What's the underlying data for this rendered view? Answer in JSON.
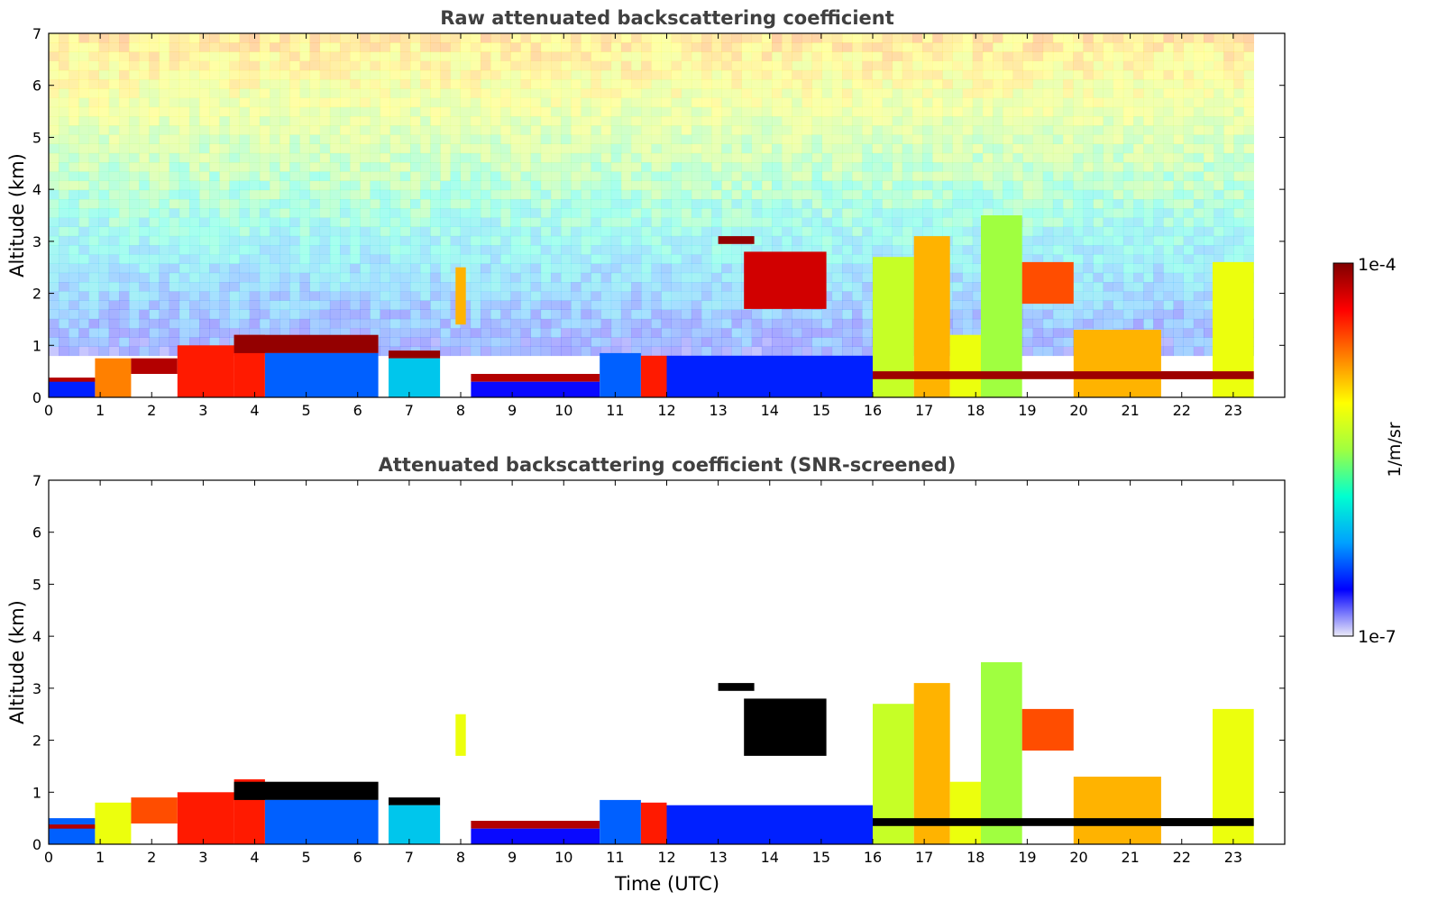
{
  "chart_data": [
    {
      "type": "heatmap",
      "title": "Raw attenuated backscattering coefficient",
      "xlabel": "",
      "ylabel": "Altitude (km)",
      "xlim": [
        0,
        24
      ],
      "ylim": [
        0,
        7
      ],
      "xticks": [
        "0",
        "1",
        "2",
        "3",
        "4",
        "5",
        "6",
        "7",
        "8",
        "9",
        "10",
        "11",
        "12",
        "13",
        "14",
        "15",
        "16",
        "17",
        "18",
        "19",
        "20",
        "21",
        "22",
        "23"
      ],
      "yticks": [
        "0",
        "1",
        "2",
        "3",
        "4",
        "5",
        "6",
        "7"
      ],
      "data_end_hour": 23.4,
      "grid": false,
      "layers": [
        {
          "t0": 0.0,
          "t1": 0.9,
          "base": 0.0,
          "top": 0.35,
          "level": 0.15
        },
        {
          "t0": 0.0,
          "t1": 0.9,
          "base": 0.3,
          "top": 0.38,
          "level": 0.95
        },
        {
          "t0": 0.9,
          "t1": 1.6,
          "base": 0.0,
          "top": 0.75,
          "level": 0.75
        },
        {
          "t0": 1.6,
          "t1": 2.5,
          "base": 0.45,
          "top": 0.75,
          "level": 0.95
        },
        {
          "t0": 2.5,
          "t1": 3.6,
          "base": 0.0,
          "top": 1.0,
          "level": 0.85
        },
        {
          "t0": 3.6,
          "t1": 4.2,
          "base": 0.0,
          "top": 1.2,
          "level": 0.85
        },
        {
          "t0": 3.6,
          "t1": 6.4,
          "base": 0.85,
          "top": 1.2,
          "level": 0.98
        },
        {
          "t0": 4.2,
          "t1": 6.4,
          "base": 0.0,
          "top": 0.85,
          "level": 0.2
        },
        {
          "t0": 6.6,
          "t1": 7.6,
          "base": 0.75,
          "top": 0.9,
          "level": 0.98
        },
        {
          "t0": 6.6,
          "t1": 7.6,
          "base": 0.0,
          "top": 0.75,
          "level": 0.3
        },
        {
          "t0": 7.9,
          "t1": 8.1,
          "base": 1.4,
          "top": 2.5,
          "level": 0.7
        },
        {
          "t0": 8.2,
          "t1": 10.7,
          "base": 0.3,
          "top": 0.45,
          "level": 0.95
        },
        {
          "t0": 8.2,
          "t1": 10.7,
          "base": 0.0,
          "top": 0.3,
          "level": 0.12
        },
        {
          "t0": 10.7,
          "t1": 11.5,
          "base": 0.0,
          "top": 0.85,
          "level": 0.2
        },
        {
          "t0": 11.5,
          "t1": 12.0,
          "base": 0.0,
          "top": 0.8,
          "level": 0.85
        },
        {
          "t0": 12.0,
          "t1": 16.0,
          "base": 0.0,
          "top": 0.8,
          "level": 0.15
        },
        {
          "t0": 13.0,
          "t1": 13.7,
          "base": 2.95,
          "top": 3.1,
          "level": 0.98
        },
        {
          "t0": 13.5,
          "t1": 15.1,
          "base": 1.7,
          "top": 2.8,
          "level": 0.92
        },
        {
          "t0": 16.0,
          "t1": 16.8,
          "base": 0.0,
          "top": 2.7,
          "level": 0.55
        },
        {
          "t0": 16.8,
          "t1": 17.5,
          "base": 0.0,
          "top": 3.1,
          "level": 0.7
        },
        {
          "t0": 17.5,
          "t1": 18.1,
          "base": 0.0,
          "top": 1.2,
          "level": 0.6
        },
        {
          "t0": 18.1,
          "t1": 18.9,
          "base": 0.0,
          "top": 3.5,
          "level": 0.5
        },
        {
          "t0": 18.9,
          "t1": 19.9,
          "base": 1.8,
          "top": 2.6,
          "level": 0.8
        },
        {
          "t0": 19.9,
          "t1": 21.6,
          "base": 0.0,
          "top": 1.3,
          "level": 0.7
        },
        {
          "t0": 21.6,
          "t1": 22.6,
          "base": 0.35,
          "top": 0.5,
          "level": 0.95
        },
        {
          "t0": 22.6,
          "t1": 23.4,
          "base": 0.0,
          "top": 2.6,
          "level": 0.6
        },
        {
          "t0": 16.0,
          "t1": 23.4,
          "base": 0.35,
          "top": 0.5,
          "level": 0.97
        }
      ]
    },
    {
      "type": "heatmap",
      "title": "Attenuated backscattering coefficient (SNR-screened)",
      "xlabel": "Time (UTC)",
      "ylabel": "Altitude (km)",
      "xlim": [
        0,
        24
      ],
      "ylim": [
        0,
        7
      ],
      "xticks": [
        "0",
        "1",
        "2",
        "3",
        "4",
        "5",
        "6",
        "7",
        "8",
        "9",
        "10",
        "11",
        "12",
        "13",
        "14",
        "15",
        "16",
        "17",
        "18",
        "19",
        "20",
        "21",
        "22",
        "23"
      ],
      "yticks": [
        "0",
        "1",
        "2",
        "3",
        "4",
        "5",
        "6",
        "7"
      ],
      "data_end_hour": 23.4,
      "grid": false,
      "layers": [
        {
          "t0": 0.0,
          "t1": 0.9,
          "base": 0.0,
          "top": 0.5,
          "level": 0.2
        },
        {
          "t0": 0.0,
          "t1": 0.9,
          "base": 0.3,
          "top": 0.38,
          "level": 0.95
        },
        {
          "t0": 0.9,
          "t1": 1.6,
          "base": 0.0,
          "top": 0.8,
          "level": 0.6
        },
        {
          "t0": 1.6,
          "t1": 2.5,
          "base": 0.4,
          "top": 0.9,
          "level": 0.8
        },
        {
          "t0": 2.5,
          "t1": 3.6,
          "base": 0.0,
          "top": 1.0,
          "level": 0.85
        },
        {
          "t0": 3.6,
          "t1": 4.2,
          "base": 0.0,
          "top": 1.25,
          "level": 0.85
        },
        {
          "t0": 3.6,
          "t1": 6.4,
          "base": 0.85,
          "top": 1.2,
          "level": 1.0
        },
        {
          "t0": 4.2,
          "t1": 6.4,
          "base": 0.0,
          "top": 0.85,
          "level": 0.2
        },
        {
          "t0": 6.6,
          "t1": 7.6,
          "base": 0.75,
          "top": 0.9,
          "level": 1.0
        },
        {
          "t0": 6.6,
          "t1": 7.6,
          "base": 0.0,
          "top": 0.75,
          "level": 0.3
        },
        {
          "t0": 7.9,
          "t1": 8.1,
          "base": 1.7,
          "top": 2.5,
          "level": 0.6
        },
        {
          "t0": 8.2,
          "t1": 10.7,
          "base": 0.3,
          "top": 0.45,
          "level": 0.95
        },
        {
          "t0": 8.2,
          "t1": 10.7,
          "base": 0.0,
          "top": 0.3,
          "level": 0.12
        },
        {
          "t0": 10.7,
          "t1": 11.5,
          "base": 0.0,
          "top": 0.85,
          "level": 0.2
        },
        {
          "t0": 11.5,
          "t1": 12.0,
          "base": 0.0,
          "top": 0.8,
          "level": 0.85
        },
        {
          "t0": 12.0,
          "t1": 16.0,
          "base": 0.0,
          "top": 0.75,
          "level": 0.15
        },
        {
          "t0": 13.0,
          "t1": 13.7,
          "base": 2.95,
          "top": 3.1,
          "level": 1.0
        },
        {
          "t0": 13.5,
          "t1": 15.1,
          "base": 1.7,
          "top": 2.8,
          "level": 1.0
        },
        {
          "t0": 16.0,
          "t1": 16.8,
          "base": 0.0,
          "top": 2.7,
          "level": 0.55
        },
        {
          "t0": 16.8,
          "t1": 17.5,
          "base": 0.0,
          "top": 3.1,
          "level": 0.7
        },
        {
          "t0": 17.5,
          "t1": 18.1,
          "base": 0.0,
          "top": 1.2,
          "level": 0.6
        },
        {
          "t0": 18.1,
          "t1": 18.9,
          "base": 0.0,
          "top": 3.5,
          "level": 0.5
        },
        {
          "t0": 18.9,
          "t1": 19.9,
          "base": 1.8,
          "top": 2.6,
          "level": 0.8
        },
        {
          "t0": 19.9,
          "t1": 21.6,
          "base": 0.0,
          "top": 1.3,
          "level": 0.7
        },
        {
          "t0": 21.6,
          "t1": 22.6,
          "base": 0.35,
          "top": 0.5,
          "level": 1.0
        },
        {
          "t0": 22.6,
          "t1": 23.4,
          "base": 0.0,
          "top": 2.6,
          "level": 0.6
        },
        {
          "t0": 16.0,
          "t1": 23.4,
          "base": 0.35,
          "top": 0.5,
          "level": 1.0
        }
      ]
    }
  ],
  "colorbar": {
    "label": "1/m/sr",
    "max_label": "1e-4",
    "min_label": "1e-7",
    "scale": "log",
    "range": [
      1e-07,
      0.0001
    ],
    "colormap": "jet",
    "stops": [
      "#ebeaf8",
      "#0000ff",
      "#00a0ff",
      "#00ffd0",
      "#a0ff40",
      "#ffff00",
      "#ff8000",
      "#ff0000",
      "#800000"
    ],
    "thick_layer_color": "#000000"
  }
}
